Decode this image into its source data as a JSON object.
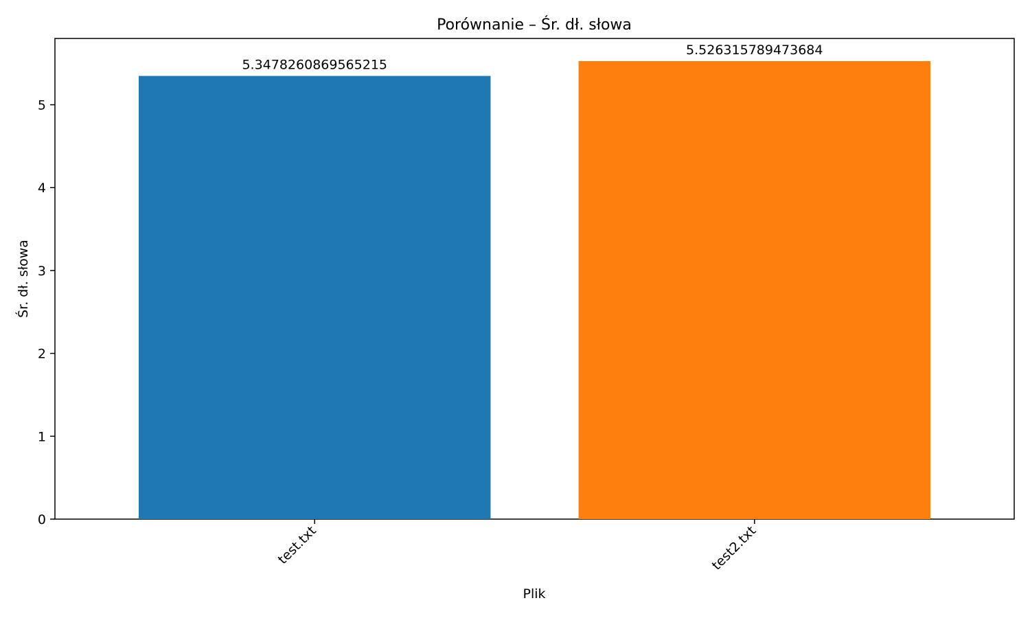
{
  "chart_data": {
    "type": "bar",
    "title": "Porównanie – Śr. dł. słowa",
    "xlabel": "Plik",
    "ylabel": "Śr. dł. słowa",
    "categories": [
      "test.txt",
      "test2.txt"
    ],
    "values": [
      5.3478260869565215,
      5.526315789473684
    ],
    "value_labels": [
      "5.3478260869565215",
      "5.526315789473684"
    ],
    "colors": [
      "#1f77b4",
      "#ff7f0e"
    ],
    "ylim": [
      0,
      5.8
    ],
    "yticks": [
      0,
      1,
      2,
      3,
      4,
      5
    ],
    "grid": false,
    "legend": "none"
  }
}
